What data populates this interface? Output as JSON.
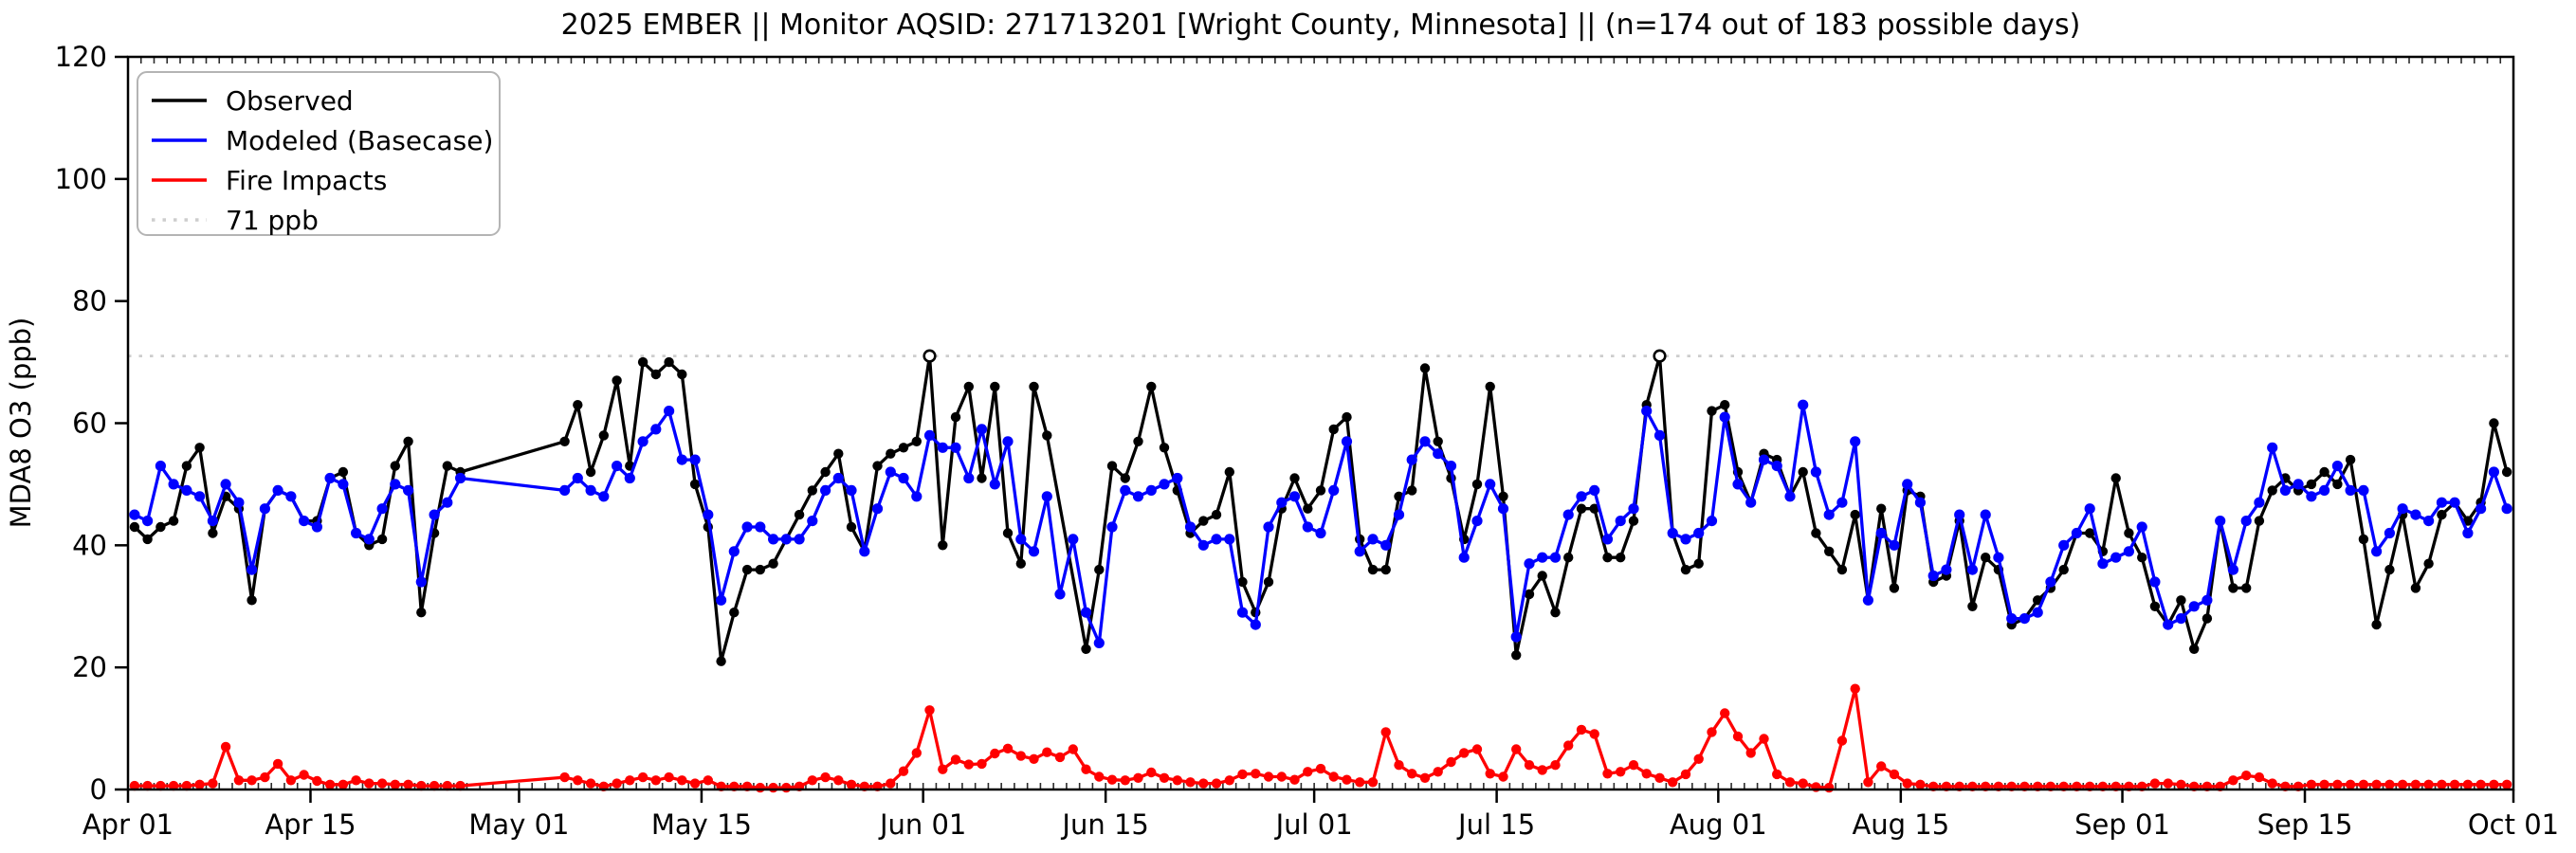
{
  "figure": {
    "title": "2025 EMBER || Monitor AQSID: 271713201 [Wright County, Minnesota] || (n=174 out of 183 possible days)",
    "program": "2025 EMBER",
    "monitor_aqsid": "271713201",
    "location": "Wright County, Minnesota",
    "observed_day_count": "n=174 out of 183 possible days",
    "background_color": "#ffffff"
  },
  "chart_data": {
    "type": "line",
    "title": "2025 EMBER || Monitor AQSID: 271713201 [Wright County, Minnesota] || (n=174 out of 183 possible days)",
    "xlabel": "",
    "ylabel": "MDA8 O3 (ppb)",
    "ylim": [
      0,
      120
    ],
    "yticks": [
      0,
      20,
      40,
      60,
      80,
      100,
      120
    ],
    "x_range": "daily values from Apr 01 to Oct 01",
    "n_days": 183,
    "n_observed": 174,
    "grid": false,
    "xtick_days": [
      0,
      14,
      30,
      44,
      61,
      75,
      91,
      105,
      122,
      136,
      153,
      167,
      183
    ],
    "xtick_labels": [
      "Apr 01",
      "Apr 15",
      "May 01",
      "May 15",
      "Jun 01",
      "Jun 15",
      "Jul 01",
      "Jul 15",
      "Aug 01",
      "Aug 15",
      "Sep 01",
      "Sep 15",
      "Oct 01"
    ],
    "threshold": {
      "value": 71,
      "label": "71 ppb",
      "color": "#cdcdcd",
      "style": "dotted"
    },
    "legend": {
      "position": "upper-left",
      "entries": [
        {
          "label": "Observed",
          "color": "#000000",
          "style": "solid"
        },
        {
          "label": "Modeled (Basecase)",
          "color": "#0000ff",
          "style": "solid"
        },
        {
          "label": "Fire Impacts",
          "color": "#ff0000",
          "style": "solid"
        },
        {
          "label": "71 ppb",
          "color": "#cdcdcd",
          "style": "dotted"
        }
      ]
    },
    "exceedance_indices": [
      61,
      117
    ],
    "exceedance_note": "open circle markers on the 71 ppb line at Jun 01 and Jul 27",
    "series": [
      {
        "name": "Observed",
        "color": "#000000",
        "marker": "circle",
        "values": [
          43,
          41,
          43,
          44,
          53,
          56,
          42,
          48,
          46,
          31,
          46,
          49,
          48,
          44,
          44,
          51,
          52,
          42,
          40,
          41,
          53,
          57,
          29,
          42,
          53,
          52,
          null,
          null,
          null,
          null,
          null,
          null,
          null,
          57,
          63,
          52,
          58,
          67,
          53,
          70,
          68,
          70,
          68,
          50,
          43,
          21,
          29,
          36,
          36,
          37,
          41,
          45,
          49,
          52,
          55,
          43,
          39,
          53,
          55,
          56,
          57,
          71,
          40,
          61,
          66,
          51,
          66,
          42,
          37,
          66,
          58,
          null,
          null,
          23,
          36,
          53,
          51,
          57,
          66,
          56,
          49,
          42,
          44,
          45,
          52,
          34,
          29,
          34,
          46,
          51,
          46,
          49,
          59,
          61,
          41,
          36,
          36,
          48,
          49,
          69,
          57,
          51,
          41,
          50,
          66,
          48,
          22,
          32,
          35,
          29,
          38,
          46,
          46,
          38,
          38,
          44,
          63,
          71,
          42,
          36,
          37,
          62,
          63,
          52,
          47,
          55,
          54,
          48,
          52,
          42,
          39,
          36,
          45,
          31,
          46,
          33,
          49,
          48,
          34,
          35,
          44,
          30,
          38,
          36,
          27,
          28,
          31,
          33,
          36,
          42,
          42,
          39,
          51,
          42,
          38,
          30,
          27,
          31,
          23,
          28,
          44,
          33,
          33,
          44,
          49,
          51,
          49,
          50,
          52,
          50,
          54,
          41,
          27,
          36,
          45,
          33,
          37,
          45,
          47,
          44,
          47,
          60,
          52
        ]
      },
      {
        "name": "Modeled (Basecase)",
        "color": "#0000ff",
        "marker": "circle",
        "values": [
          45,
          44,
          53,
          50,
          49,
          48,
          44,
          50,
          47,
          36,
          46,
          49,
          48,
          44,
          43,
          51,
          50,
          42,
          41,
          46,
          50,
          49,
          34,
          45,
          47,
          51,
          null,
          null,
          null,
          null,
          null,
          null,
          null,
          49,
          51,
          49,
          48,
          53,
          51,
          57,
          59,
          62,
          54,
          54,
          45,
          31,
          39,
          43,
          43,
          41,
          41,
          41,
          44,
          49,
          51,
          49,
          39,
          46,
          52,
          51,
          48,
          58,
          56,
          56,
          51,
          59,
          50,
          57,
          41,
          39,
          48,
          32,
          41,
          29,
          24,
          43,
          49,
          48,
          49,
          50,
          51,
          43,
          40,
          41,
          41,
          29,
          27,
          43,
          47,
          48,
          43,
          42,
          49,
          57,
          39,
          41,
          40,
          45,
          54,
          57,
          55,
          53,
          38,
          44,
          50,
          46,
          25,
          37,
          38,
          38,
          45,
          48,
          49,
          41,
          44,
          46,
          62,
          58,
          42,
          41,
          42,
          44,
          61,
          50,
          47,
          54,
          53,
          48,
          63,
          52,
          45,
          47,
          57,
          31,
          42,
          40,
          50,
          47,
          35,
          36,
          45,
          36,
          45,
          38,
          28,
          28,
          29,
          34,
          40,
          42,
          46,
          37,
          38,
          39,
          43,
          34,
          27,
          28,
          30,
          31,
          44,
          36,
          44,
          47,
          56,
          49,
          50,
          48,
          49,
          53,
          49,
          49,
          39,
          42,
          46,
          45,
          44,
          47,
          47,
          42,
          46,
          52,
          46
        ]
      },
      {
        "name": "Fire Impacts",
        "color": "#ff0000",
        "marker": "circle",
        "values": [
          0.6,
          0.6,
          0.6,
          0.6,
          0.6,
          0.8,
          1,
          7,
          1.5,
          1.5,
          2,
          4.2,
          1.5,
          2.4,
          1.4,
          0.8,
          0.8,
          1.5,
          1,
          1,
          0.8,
          0.8,
          0.6,
          0.6,
          0.6,
          0.6,
          null,
          null,
          null,
          null,
          null,
          null,
          null,
          2,
          1.5,
          1,
          0.5,
          1,
          1.5,
          2,
          1.5,
          2,
          1.5,
          1,
          1.5,
          0.5,
          0.5,
          0.5,
          0.3,
          0.3,
          0.3,
          0.5,
          1.5,
          2,
          1.5,
          0.8,
          0.5,
          0.5,
          1,
          3,
          6,
          13,
          3.3,
          4.9,
          4.1,
          4.2,
          5.9,
          6.7,
          5.5,
          5,
          6.1,
          5.3,
          6.6,
          3.3,
          2.1,
          1.6,
          1.5,
          1.9,
          2.8,
          1.9,
          1.5,
          1.2,
          1,
          1,
          1.5,
          2.5,
          2.6,
          2.1,
          2.1,
          1.6,
          2.9,
          3.4,
          2.1,
          1.6,
          1.2,
          1.2,
          9.4,
          4,
          2.6,
          1.9,
          2.9,
          4.5,
          6,
          6.6,
          2.6,
          2.1,
          6.6,
          4,
          3.2,
          4,
          7.2,
          9.8,
          9.1,
          2.6,
          2.9,
          4,
          2.6,
          1.9,
          1.2,
          2.5,
          5,
          9.4,
          12.5,
          8.7,
          6,
          8.3,
          2.5,
          1.2,
          1,
          0.4,
          0.3,
          8,
          16.5,
          1.2,
          3.8,
          2.5,
          1,
          0.8,
          0.5,
          0.5,
          0.5,
          0.5,
          0.5,
          0.5,
          0.5,
          0.5,
          0.5,
          0.5,
          0.5,
          0.5,
          0.5,
          0.5,
          0.5,
          0.5,
          0.5,
          1,
          1,
          0.8,
          0.5,
          0.5,
          0.5,
          1.5,
          2.3,
          2,
          1,
          0.5,
          0.5,
          0.8,
          0.8,
          0.8,
          0.8,
          0.8,
          0.8,
          0.8,
          0.8,
          0.8,
          0.8,
          0.8,
          0.8,
          0.8,
          0.8,
          0.8,
          0.8
        ]
      }
    ],
    "style": {
      "axis_color": "#000000",
      "tick_label_size": 29,
      "title_size": 30,
      "legend_label_size": 28,
      "line_width": 3.3,
      "marker_radius": 5.2
    }
  }
}
